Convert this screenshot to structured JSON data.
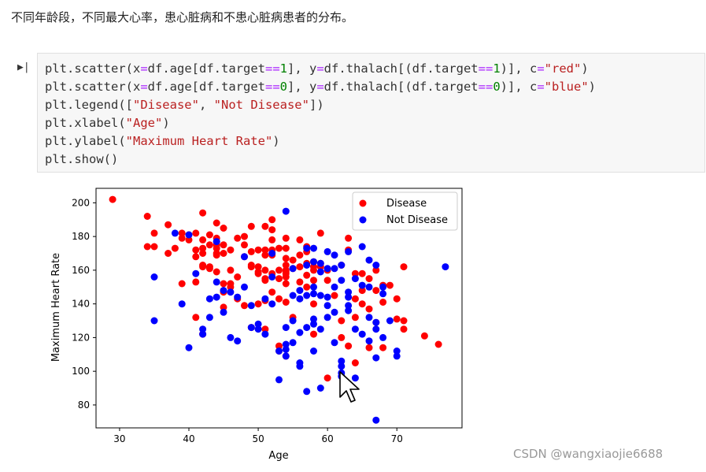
{
  "intro_text": "不同年龄段，不同最大心率，患心脏病和不患心脏病患者的分布。",
  "code_lines": [
    [
      [
        "plt.scatter(x",
        "p"
      ],
      [
        "=",
        "o"
      ],
      [
        "df.age[df.target",
        "p"
      ],
      [
        "==",
        "o"
      ],
      [
        "1",
        "n"
      ],
      [
        "], y",
        "p"
      ],
      [
        "=",
        "o"
      ],
      [
        "df.thalach[(df.target",
        "p"
      ],
      [
        "==",
        "o"
      ],
      [
        "1",
        "n"
      ],
      [
        ")], c",
        "p"
      ],
      [
        "=",
        "o"
      ],
      [
        "\"red\"",
        "s"
      ],
      [
        ")",
        "p"
      ]
    ],
    [
      [
        "plt.scatter(x",
        "p"
      ],
      [
        "=",
        "o"
      ],
      [
        "df.age[df.target",
        "p"
      ],
      [
        "==",
        "o"
      ],
      [
        "0",
        "n"
      ],
      [
        "], y",
        "p"
      ],
      [
        "=",
        "o"
      ],
      [
        "df.thalach[(df.target",
        "p"
      ],
      [
        "==",
        "o"
      ],
      [
        "0",
        "n"
      ],
      [
        ")], c",
        "p"
      ],
      [
        "=",
        "o"
      ],
      [
        "\"blue\"",
        "s"
      ],
      [
        ")",
        "p"
      ]
    ],
    [
      [
        "plt.legend([",
        "p"
      ],
      [
        "\"Disease\"",
        "s"
      ],
      [
        ", ",
        "p"
      ],
      [
        "\"Not Disease\"",
        "s"
      ],
      [
        "])",
        "p"
      ]
    ],
    [
      [
        "plt.xlabel(",
        "p"
      ],
      [
        "\"Age\"",
        "s"
      ],
      [
        ")",
        "p"
      ]
    ],
    [
      [
        "plt.ylabel(",
        "p"
      ],
      [
        "\"Maximum Heart Rate\"",
        "s"
      ],
      [
        ")",
        "p"
      ]
    ],
    [
      [
        "plt.show()",
        "p"
      ]
    ]
  ],
  "watermark": "CSDN @wangxiaojie6688",
  "chart_data": {
    "type": "scatter",
    "xlabel": "Age",
    "ylabel": "Maximum Heart Rate",
    "xlim": [
      26.6,
      79.4
    ],
    "ylim": [
      66.4,
      208.6
    ],
    "xticks": [
      30,
      40,
      50,
      60,
      70
    ],
    "yticks": [
      80,
      100,
      120,
      140,
      160,
      180,
      200
    ],
    "grid": false,
    "legend_position": "top-right",
    "series": [
      {
        "name": "Disease",
        "color": "#ff0000",
        "points": [
          [
            29,
            202
          ],
          [
            34,
            192
          ],
          [
            34,
            174
          ],
          [
            35,
            182
          ],
          [
            35,
            174
          ],
          [
            37,
            187
          ],
          [
            37,
            170
          ],
          [
            38,
            173
          ],
          [
            39,
            179
          ],
          [
            39,
            182
          ],
          [
            39,
            152
          ],
          [
            40,
            181
          ],
          [
            40,
            178
          ],
          [
            41,
            182
          ],
          [
            41,
            172
          ],
          [
            41,
            168
          ],
          [
            41,
            153
          ],
          [
            41,
            132
          ],
          [
            42,
            194
          ],
          [
            42,
            178
          ],
          [
            42,
            173
          ],
          [
            42,
            170
          ],
          [
            42,
            163
          ],
          [
            42,
            162
          ],
          [
            42,
            122
          ],
          [
            43,
            181
          ],
          [
            43,
            175
          ],
          [
            43,
            162
          ],
          [
            43,
            161
          ],
          [
            44,
            188
          ],
          [
            44,
            179
          ],
          [
            44,
            175
          ],
          [
            44,
            173
          ],
          [
            44,
            170
          ],
          [
            44,
            169
          ],
          [
            44,
            159
          ],
          [
            45,
            185
          ],
          [
            45,
            175
          ],
          [
            45,
            170
          ],
          [
            45,
            152
          ],
          [
            45,
            147
          ],
          [
            45,
            138
          ],
          [
            46,
            172
          ],
          [
            46,
            160
          ],
          [
            46,
            152
          ],
          [
            46,
            150
          ],
          [
            47,
            179
          ],
          [
            47,
            156
          ],
          [
            47,
            143
          ],
          [
            48,
            180
          ],
          [
            48,
            175
          ],
          [
            48,
            168
          ],
          [
            48,
            139
          ],
          [
            49,
            186
          ],
          [
            49,
            171
          ],
          [
            49,
            163
          ],
          [
            49,
            162
          ],
          [
            49,
            126
          ],
          [
            50,
            172
          ],
          [
            50,
            162
          ],
          [
            50,
            159
          ],
          [
            50,
            158
          ],
          [
            50,
            140
          ],
          [
            51,
            186
          ],
          [
            51,
            172
          ],
          [
            51,
            169
          ],
          [
            51,
            160
          ],
          [
            51,
            155
          ],
          [
            51,
            154
          ],
          [
            51,
            142
          ],
          [
            51,
            125
          ],
          [
            52,
            190
          ],
          [
            52,
            184
          ],
          [
            52,
            178
          ],
          [
            52,
            172
          ],
          [
            52,
            169
          ],
          [
            52,
            158
          ],
          [
            52,
            147
          ],
          [
            53,
            173
          ],
          [
            53,
            160
          ],
          [
            53,
            155
          ],
          [
            53,
            115
          ],
          [
            53,
            112
          ],
          [
            53,
            143
          ],
          [
            54,
            179
          ],
          [
            54,
            173
          ],
          [
            54,
            167
          ],
          [
            54,
            163
          ],
          [
            54,
            160
          ],
          [
            54,
            159
          ],
          [
            54,
            158
          ],
          [
            54,
            156
          ],
          [
            54,
            152
          ],
          [
            54,
            141
          ],
          [
            54,
            109
          ],
          [
            55,
            166
          ],
          [
            55,
            161
          ],
          [
            55,
            132
          ],
          [
            56,
            178
          ],
          [
            56,
            169
          ],
          [
            56,
            162
          ],
          [
            56,
            153
          ],
          [
            57,
            174
          ],
          [
            57,
            171
          ],
          [
            57,
            164
          ],
          [
            57,
            157
          ],
          [
            57,
            150
          ],
          [
            58,
            165
          ],
          [
            58,
            162
          ],
          [
            58,
            160
          ],
          [
            58,
            154
          ],
          [
            58,
            140
          ],
          [
            58,
            122
          ],
          [
            59,
            182
          ],
          [
            59,
            164
          ],
          [
            59,
            162
          ],
          [
            60,
            160
          ],
          [
            60,
            154
          ],
          [
            60,
            96
          ],
          [
            61,
            145
          ],
          [
            62,
            163
          ],
          [
            62,
            130
          ],
          [
            62,
            120
          ],
          [
            63,
            179
          ],
          [
            63,
            172
          ],
          [
            63,
            115
          ],
          [
            64,
            158
          ],
          [
            64,
            143
          ],
          [
            64,
            132
          ],
          [
            64,
            105
          ],
          [
            65,
            158
          ],
          [
            65,
            148
          ],
          [
            65,
            140
          ],
          [
            66,
            155
          ],
          [
            66,
            114
          ],
          [
            67,
            160
          ],
          [
            67,
            129
          ],
          [
            67,
            148
          ],
          [
            68,
            151
          ],
          [
            68,
            141
          ],
          [
            69,
            151
          ],
          [
            70,
            143
          ],
          [
            70,
            131
          ],
          [
            71,
            130
          ],
          [
            71,
            125
          ],
          [
            71,
            162
          ],
          [
            74,
            121
          ],
          [
            76,
            116
          ],
          [
            68,
            114
          ],
          [
            66,
            137
          ]
        ]
      },
      {
        "name": "Not Disease",
        "color": "#0000ff",
        "points": [
          [
            35,
            156
          ],
          [
            35,
            130
          ],
          [
            38,
            182
          ],
          [
            39,
            140
          ],
          [
            40,
            181
          ],
          [
            40,
            114
          ],
          [
            41,
            158
          ],
          [
            42,
            125
          ],
          [
            42,
            122
          ],
          [
            43,
            132
          ],
          [
            43,
            143
          ],
          [
            44,
            153
          ],
          [
            44,
            177
          ],
          [
            44,
            144
          ],
          [
            45,
            148
          ],
          [
            45,
            135
          ],
          [
            46,
            147
          ],
          [
            46,
            120
          ],
          [
            47,
            144
          ],
          [
            47,
            118
          ],
          [
            48,
            168
          ],
          [
            48,
            150
          ],
          [
            49,
            139
          ],
          [
            49,
            126
          ],
          [
            50,
            128
          ],
          [
            50,
            125
          ],
          [
            51,
            143
          ],
          [
            51,
            122
          ],
          [
            52,
            170
          ],
          [
            52,
            156
          ],
          [
            52,
            140
          ],
          [
            53,
            95
          ],
          [
            53,
            112
          ],
          [
            54,
            195
          ],
          [
            54,
            126
          ],
          [
            54,
            116
          ],
          [
            54,
            109
          ],
          [
            54,
            113
          ],
          [
            55,
            161
          ],
          [
            55,
            145
          ],
          [
            55,
            130
          ],
          [
            55,
            117
          ],
          [
            56,
            148
          ],
          [
            56,
            143
          ],
          [
            56,
            123
          ],
          [
            56,
            105
          ],
          [
            56,
            103
          ],
          [
            57,
            173
          ],
          [
            57,
            163
          ],
          [
            57,
            145
          ],
          [
            57,
            126
          ],
          [
            57,
            88
          ],
          [
            58,
            173
          ],
          [
            58,
            165
          ],
          [
            58,
            150
          ],
          [
            58,
            146
          ],
          [
            58,
            131
          ],
          [
            58,
            112
          ],
          [
            59,
            164
          ],
          [
            59,
            159
          ],
          [
            59,
            145
          ],
          [
            59,
            125
          ],
          [
            59,
            90
          ],
          [
            60,
            171
          ],
          [
            60,
            161
          ],
          [
            60,
            144
          ],
          [
            60,
            132
          ],
          [
            61,
            169
          ],
          [
            61,
            161
          ],
          [
            61,
            150
          ],
          [
            61,
            135
          ],
          [
            61,
            117
          ],
          [
            62,
            163
          ],
          [
            62,
            154
          ],
          [
            62,
            106
          ],
          [
            62,
            103
          ],
          [
            62,
            99
          ],
          [
            62,
            97
          ],
          [
            63,
            171
          ],
          [
            63,
            144
          ],
          [
            63,
            136
          ],
          [
            63,
            147
          ],
          [
            64,
            155
          ],
          [
            64,
            125
          ],
          [
            64,
            96
          ],
          [
            65,
            174
          ],
          [
            65,
            151
          ],
          [
            65,
            122
          ],
          [
            66,
            166
          ],
          [
            66,
            150
          ],
          [
            66,
            132
          ],
          [
            66,
            118
          ],
          [
            67,
            163
          ],
          [
            67,
            129
          ],
          [
            67,
            125
          ],
          [
            67,
            108
          ],
          [
            67,
            71
          ],
          [
            68,
            150
          ],
          [
            68,
            146
          ],
          [
            68,
            120
          ],
          [
            69,
            130
          ],
          [
            70,
            112
          ],
          [
            70,
            109
          ],
          [
            77,
            162
          ],
          [
            60,
            139
          ],
          [
            63,
            139
          ],
          [
            58,
            128
          ]
        ]
      }
    ]
  }
}
